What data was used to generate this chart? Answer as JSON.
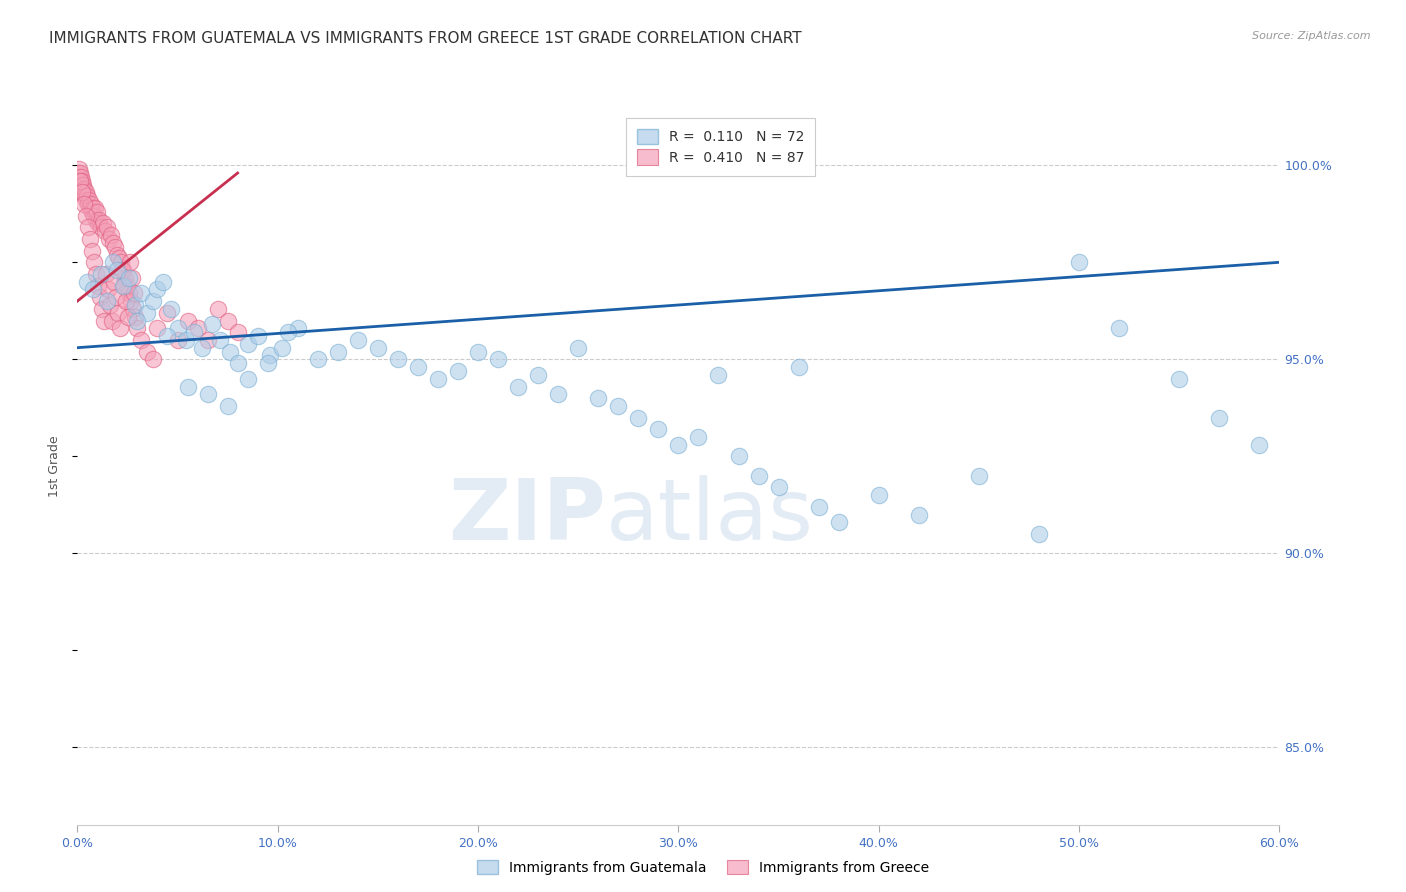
{
  "title": "IMMIGRANTS FROM GUATEMALA VS IMMIGRANTS FROM GREECE 1ST GRADE CORRELATION CHART",
  "source": "Source: ZipAtlas.com",
  "ylabel": "1st Grade",
  "legend_blue_label": "Immigrants from Guatemala",
  "legend_pink_label": "Immigrants from Greece",
  "R_blue": 0.11,
  "N_blue": 72,
  "R_pink": 0.41,
  "N_pink": 87,
  "xlim": [
    0.0,
    60.0
  ],
  "ylim": [
    83.0,
    101.5
  ],
  "yticks": [
    85.0,
    90.0,
    95.0,
    100.0
  ],
  "xticks": [
    0.0,
    10.0,
    20.0,
    30.0,
    40.0,
    50.0,
    60.0
  ],
  "blue_color": "#aecde8",
  "blue_edge_color": "#7ab0d4",
  "pink_color": "#f4a0b8",
  "pink_edge_color": "#e06080",
  "trend_blue_color": "#1a5fa8",
  "trend_pink_color": "#c83050",
  "blue_scatter_x": [
    0.5,
    0.8,
    1.2,
    1.5,
    1.8,
    2.0,
    2.3,
    2.6,
    2.9,
    3.2,
    3.5,
    3.8,
    4.0,
    4.3,
    4.7,
    5.0,
    5.4,
    5.8,
    6.2,
    6.7,
    7.1,
    7.6,
    8.0,
    8.5,
    9.0,
    9.6,
    10.2,
    11.0,
    12.0,
    13.0,
    14.0,
    15.0,
    16.0,
    17.0,
    18.0,
    19.0,
    20.0,
    21.0,
    22.0,
    23.0,
    24.0,
    25.0,
    26.0,
    27.0,
    28.0,
    29.0,
    30.0,
    31.0,
    32.0,
    33.0,
    34.0,
    35.0,
    36.0,
    37.0,
    38.0,
    40.0,
    42.0,
    45.0,
    48.0,
    50.0,
    52.0,
    55.0,
    57.0,
    59.0,
    3.0,
    4.5,
    5.5,
    6.5,
    7.5,
    8.5,
    9.5,
    10.5
  ],
  "blue_scatter_y": [
    97.0,
    96.8,
    97.2,
    96.5,
    97.5,
    97.3,
    96.9,
    97.1,
    96.4,
    96.7,
    96.2,
    96.5,
    96.8,
    97.0,
    96.3,
    95.8,
    95.5,
    95.7,
    95.3,
    95.9,
    95.5,
    95.2,
    94.9,
    95.4,
    95.6,
    95.1,
    95.3,
    95.8,
    95.0,
    95.2,
    95.5,
    95.3,
    95.0,
    94.8,
    94.5,
    94.7,
    95.2,
    95.0,
    94.3,
    94.6,
    94.1,
    95.3,
    94.0,
    93.8,
    93.5,
    93.2,
    92.8,
    93.0,
    94.6,
    92.5,
    92.0,
    91.7,
    94.8,
    91.2,
    90.8,
    91.5,
    91.0,
    92.0,
    90.5,
    97.5,
    95.8,
    94.5,
    93.5,
    92.8,
    96.0,
    95.6,
    94.3,
    94.1,
    93.8,
    94.5,
    94.9,
    95.7
  ],
  "pink_scatter_x": [
    0.05,
    0.08,
    0.1,
    0.12,
    0.15,
    0.18,
    0.2,
    0.22,
    0.25,
    0.28,
    0.3,
    0.35,
    0.38,
    0.42,
    0.45,
    0.5,
    0.55,
    0.6,
    0.65,
    0.7,
    0.75,
    0.8,
    0.85,
    0.9,
    0.95,
    1.0,
    1.05,
    1.1,
    1.2,
    1.3,
    1.4,
    1.5,
    1.6,
    1.7,
    1.8,
    1.9,
    2.0,
    2.1,
    2.2,
    2.3,
    2.4,
    2.5,
    2.6,
    2.7,
    2.8,
    2.9,
    3.0,
    3.2,
    3.5,
    3.8,
    4.0,
    4.5,
    5.0,
    5.5,
    6.0,
    6.5,
    7.0,
    7.5,
    8.0,
    0.15,
    0.25,
    0.35,
    0.45,
    0.55,
    0.65,
    0.75,
    0.85,
    0.95,
    1.05,
    1.15,
    1.25,
    1.35,
    1.45,
    1.55,
    1.65,
    1.75,
    1.85,
    1.95,
    2.05,
    2.15,
    2.25,
    2.35,
    2.45,
    2.55,
    2.65,
    2.75,
    2.85
  ],
  "pink_scatter_y": [
    99.8,
    99.9,
    99.7,
    99.8,
    99.6,
    99.7,
    99.5,
    99.6,
    99.4,
    99.5,
    99.3,
    99.4,
    99.2,
    99.3,
    99.1,
    99.2,
    99.0,
    99.1,
    98.9,
    99.0,
    98.8,
    98.9,
    98.7,
    98.9,
    98.6,
    98.8,
    98.5,
    98.6,
    98.4,
    98.5,
    98.3,
    98.4,
    98.1,
    98.2,
    98.0,
    97.9,
    97.7,
    97.6,
    97.5,
    97.3,
    97.1,
    96.9,
    96.7,
    96.5,
    96.3,
    96.1,
    95.8,
    95.5,
    95.2,
    95.0,
    95.8,
    96.2,
    95.5,
    96.0,
    95.8,
    95.5,
    96.3,
    96.0,
    95.7,
    99.6,
    99.3,
    99.0,
    98.7,
    98.4,
    98.1,
    97.8,
    97.5,
    97.2,
    96.9,
    96.6,
    96.3,
    96.0,
    97.2,
    96.8,
    96.4,
    96.0,
    97.0,
    96.6,
    96.2,
    95.8,
    97.3,
    96.9,
    96.5,
    96.1,
    97.5,
    97.1,
    96.7
  ],
  "watermark_zip": "ZIP",
  "watermark_atlas": "atlas",
  "background_color": "#ffffff",
  "grid_color": "#cccccc",
  "axis_color": "#4472c4",
  "title_fontsize": 11,
  "tick_fontsize": 9,
  "label_fontsize": 9,
  "source_fontsize": 8,
  "legend_fontsize": 10
}
